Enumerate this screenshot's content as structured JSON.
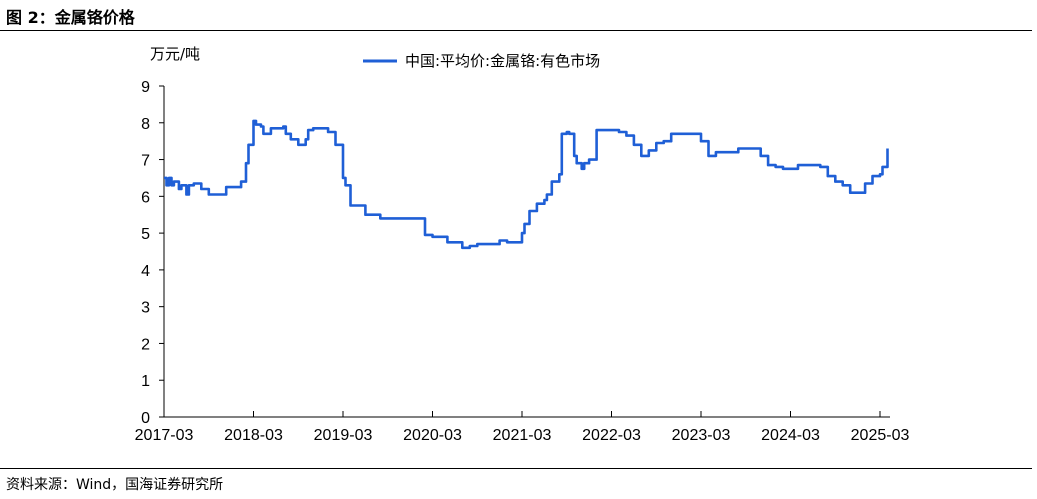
{
  "figure": {
    "title": "图 2：金属铬价格",
    "source": "资料来源：Wind，国海证券研究所"
  },
  "chart_data": {
    "type": "line",
    "unit_label": "万元/吨",
    "ylim": [
      0,
      9
    ],
    "yticks": [
      0,
      1,
      2,
      3,
      4,
      5,
      6,
      7,
      8,
      9
    ],
    "xticks": [
      "2017-03",
      "2018-03",
      "2019-03",
      "2020-03",
      "2021-03",
      "2022-03",
      "2023-03",
      "2024-03",
      "2025-03"
    ],
    "xlim": [
      "2017-03",
      "2025-04"
    ],
    "grid": false,
    "legend_position": "top",
    "series": [
      {
        "name": "中国:平均价:金属铬:有色市场",
        "color": "#1f5fd6",
        "points": [
          [
            "2017-03",
            6.5
          ],
          [
            "2017-03",
            6.3
          ],
          [
            "2017-03",
            6.5
          ],
          [
            "2017-04",
            6.3
          ],
          [
            "2017-04",
            6.4
          ],
          [
            "2017-05",
            6.2
          ],
          [
            "2017-05",
            6.3
          ],
          [
            "2017-06",
            6.05
          ],
          [
            "2017-06",
            6.3
          ],
          [
            "2017-07",
            6.35
          ],
          [
            "2017-08",
            6.2
          ],
          [
            "2017-09",
            6.05
          ],
          [
            "2017-11",
            6.05
          ],
          [
            "2017-11",
            6.25
          ],
          [
            "2018-01",
            6.25
          ],
          [
            "2018-01",
            6.4
          ],
          [
            "2018-02",
            6.9
          ],
          [
            "2018-02",
            7.4
          ],
          [
            "2018-03",
            8.05
          ],
          [
            "2018-03",
            7.95
          ],
          [
            "2018-04",
            7.9
          ],
          [
            "2018-04",
            7.7
          ],
          [
            "2018-05",
            7.7
          ],
          [
            "2018-05",
            7.85
          ],
          [
            "2018-06",
            7.85
          ],
          [
            "2018-07",
            7.9
          ],
          [
            "2018-07",
            7.7
          ],
          [
            "2018-08",
            7.55
          ],
          [
            "2018-09",
            7.4
          ],
          [
            "2018-10",
            7.55
          ],
          [
            "2018-10",
            7.8
          ],
          [
            "2018-11",
            7.85
          ],
          [
            "2018-12",
            7.85
          ],
          [
            "2019-01",
            7.75
          ],
          [
            "2019-02",
            7.4
          ],
          [
            "2019-03",
            6.5
          ],
          [
            "2019-03",
            6.3
          ],
          [
            "2019-04",
            5.75
          ],
          [
            "2019-05",
            5.75
          ],
          [
            "2019-06",
            5.5
          ],
          [
            "2019-07",
            5.5
          ],
          [
            "2019-08",
            5.4
          ],
          [
            "2019-09",
            5.4
          ],
          [
            "2019-12",
            5.4
          ],
          [
            "2020-01",
            5.4
          ],
          [
            "2020-02",
            4.95
          ],
          [
            "2020-03",
            4.9
          ],
          [
            "2020-04",
            4.9
          ],
          [
            "2020-05",
            4.75
          ],
          [
            "2020-06",
            4.75
          ],
          [
            "2020-07",
            4.6
          ],
          [
            "2020-08",
            4.65
          ],
          [
            "2020-09",
            4.7
          ],
          [
            "2020-11",
            4.7
          ],
          [
            "2020-12",
            4.8
          ],
          [
            "2021-01",
            4.75
          ],
          [
            "2021-02",
            4.75
          ],
          [
            "2021-03",
            5.0
          ],
          [
            "2021-03",
            5.25
          ],
          [
            "2021-04",
            5.6
          ],
          [
            "2021-05",
            5.8
          ],
          [
            "2021-06",
            5.9
          ],
          [
            "2021-06",
            6.05
          ],
          [
            "2021-07",
            6.4
          ],
          [
            "2021-08",
            6.6
          ],
          [
            "2021-08",
            7.7
          ],
          [
            "2021-09",
            7.75
          ],
          [
            "2021-09",
            7.7
          ],
          [
            "2021-10",
            7.1
          ],
          [
            "2021-10",
            6.9
          ],
          [
            "2021-11",
            6.75
          ],
          [
            "2021-11",
            6.9
          ],
          [
            "2021-12",
            7.0
          ],
          [
            "2022-01",
            7.8
          ],
          [
            "2022-03",
            7.8
          ],
          [
            "2022-04",
            7.75
          ],
          [
            "2022-05",
            7.65
          ],
          [
            "2022-06",
            7.4
          ],
          [
            "2022-07",
            7.1
          ],
          [
            "2022-08",
            7.25
          ],
          [
            "2022-09",
            7.45
          ],
          [
            "2022-10",
            7.5
          ],
          [
            "2022-11",
            7.7
          ],
          [
            "2022-12",
            7.7
          ],
          [
            "2023-02",
            7.7
          ],
          [
            "2023-03",
            7.5
          ],
          [
            "2023-04",
            7.1
          ],
          [
            "2023-05",
            7.2
          ],
          [
            "2023-07",
            7.2
          ],
          [
            "2023-08",
            7.3
          ],
          [
            "2023-10",
            7.3
          ],
          [
            "2023-11",
            7.1
          ],
          [
            "2023-12",
            6.85
          ],
          [
            "2024-01",
            6.8
          ],
          [
            "2024-02",
            6.75
          ],
          [
            "2024-03",
            6.75
          ],
          [
            "2024-04",
            6.85
          ],
          [
            "2024-06",
            6.85
          ],
          [
            "2024-07",
            6.8
          ],
          [
            "2024-08",
            6.55
          ],
          [
            "2024-09",
            6.4
          ],
          [
            "2024-10",
            6.3
          ],
          [
            "2024-11",
            6.1
          ],
          [
            "2024-12",
            6.1
          ],
          [
            "2025-01",
            6.35
          ],
          [
            "2025-02",
            6.55
          ],
          [
            "2025-03",
            6.6
          ],
          [
            "2025-03",
            6.8
          ],
          [
            "2025-04",
            7.3
          ]
        ]
      }
    ]
  }
}
